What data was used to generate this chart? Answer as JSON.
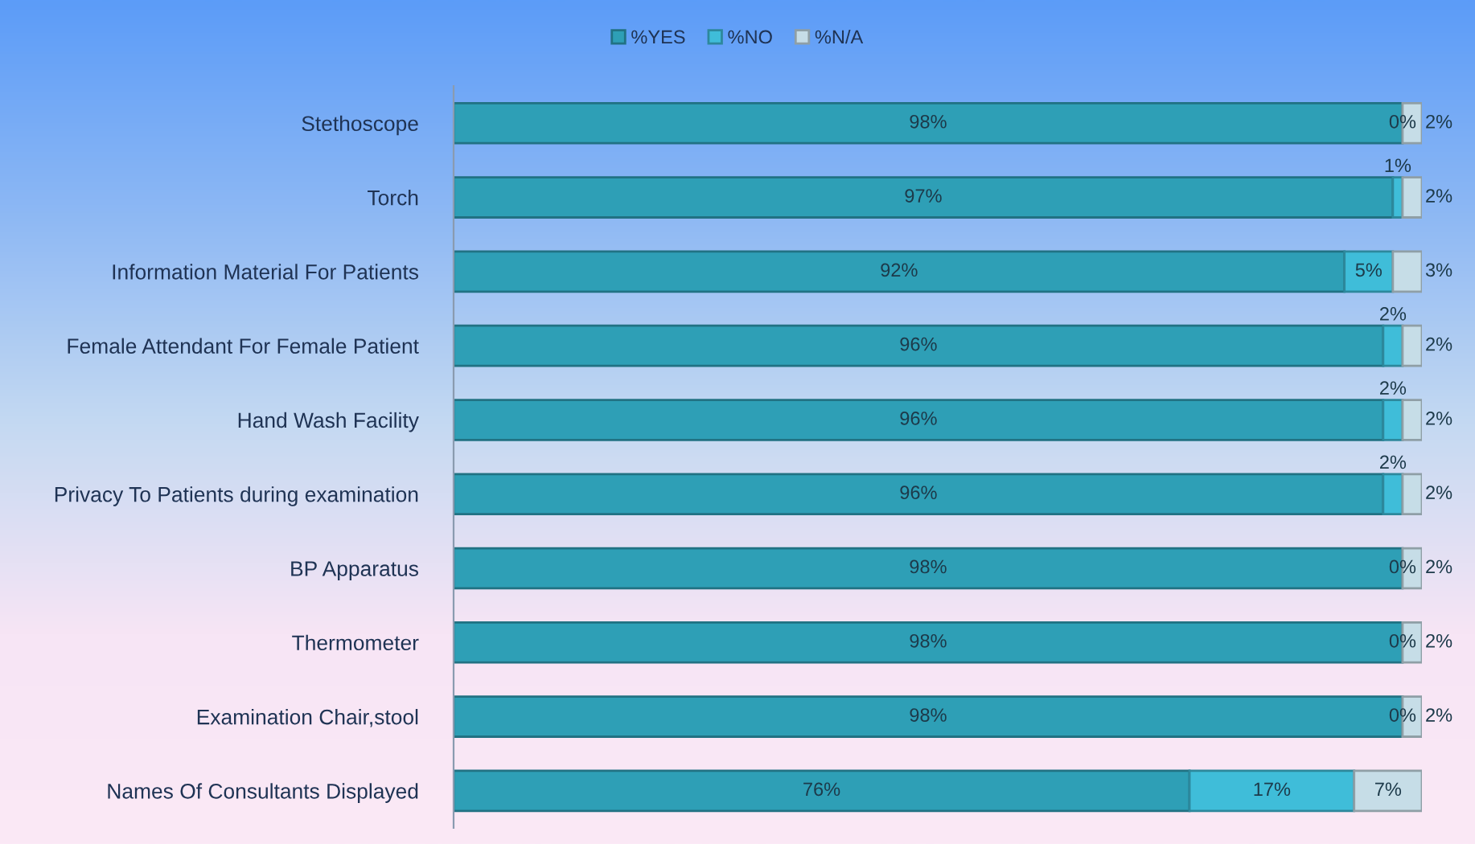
{
  "chart_data": {
    "type": "bar",
    "orientation": "horizontal",
    "stacked": true,
    "categories": [
      "Stethoscope",
      "Torch",
      "Information Material For Patients",
      "Female Attendant For Female Patient",
      "Hand Wash Facility",
      "Privacy To Patients during examination",
      "BP Apparatus",
      "Thermometer",
      "Examination Chair,stool",
      "Names Of Consultants Displayed"
    ],
    "series": [
      {
        "name": "%YES",
        "color": "#2e9fb6",
        "values": [
          98,
          97,
          92,
          96,
          96,
          96,
          98,
          98,
          98,
          76
        ],
        "value_labels": [
          "98%",
          "97%",
          "92%",
          "96%",
          "96%",
          "96%",
          "98%",
          "98%",
          "98%",
          "76%"
        ]
      },
      {
        "name": "%NO",
        "color": "#3fbdd9",
        "values": [
          0,
          1,
          5,
          2,
          2,
          2,
          0,
          0,
          0,
          17
        ],
        "value_labels": [
          "0%",
          "1%",
          "5%",
          "2%",
          "2%",
          "2%",
          "0%",
          "0%",
          "0%",
          "17%"
        ]
      },
      {
        "name": "%N/A",
        "color": "#c6dde7",
        "values": [
          2,
          2,
          3,
          2,
          2,
          2,
          2,
          2,
          2,
          7
        ],
        "value_labels": [
          "2%",
          "2%",
          "3%",
          "2%",
          "2%",
          "2%",
          "2%",
          "2%",
          "2%",
          "7%"
        ]
      }
    ],
    "legend": "top",
    "tick_labels": "y"
  }
}
